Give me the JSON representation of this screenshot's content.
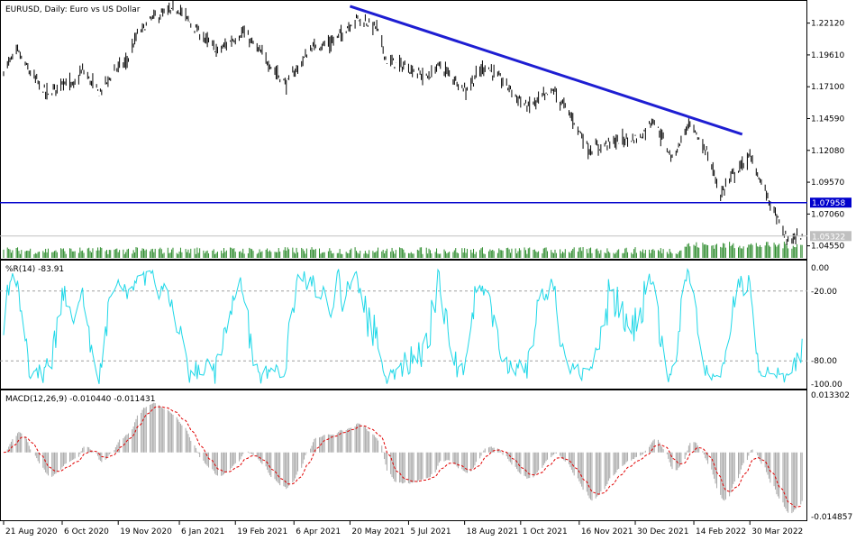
{
  "chart_data": [
    {
      "panel": "price",
      "type": "ohlc",
      "title": "EURUSD, Daily:  Euro vs US Dollar",
      "yticks": [
        "1.22120",
        "1.19610",
        "1.17100",
        "1.14590",
        "1.12080",
        "1.09570",
        "1.07060",
        "1.04550"
      ],
      "ylim": [
        1.036,
        1.238
      ],
      "horizontal_line": {
        "value": 1.07958,
        "label": "1.07958",
        "color": "#0000cc"
      },
      "current_price": {
        "value": 1.05322,
        "label": "1.05322",
        "color": "#c0c0c0"
      },
      "trendline": {
        "from": [
          "2021-05-20",
          1.2345
        ],
        "to": [
          "2022-03-24",
          1.1335
        ],
        "color": "#1e1ed2"
      },
      "close_series": [
        {
          "date": "2020-08-21",
          "close": 1.184
        },
        {
          "date": "2020-09-01",
          "close": 1.199
        },
        {
          "date": "2020-09-10",
          "close": 1.183
        },
        {
          "date": "2020-09-25",
          "close": 1.164
        },
        {
          "date": "2020-10-06",
          "close": 1.176
        },
        {
          "date": "2020-10-15",
          "close": 1.171
        },
        {
          "date": "2020-10-22",
          "close": 1.184
        },
        {
          "date": "2020-11-04",
          "close": 1.166
        },
        {
          "date": "2020-11-17",
          "close": 1.185
        },
        {
          "date": "2020-11-26",
          "close": 1.191
        },
        {
          "date": "2020-12-04",
          "close": 1.212
        },
        {
          "date": "2020-12-17",
          "close": 1.226
        },
        {
          "date": "2021-01-06",
          "close": 1.232
        },
        {
          "date": "2021-01-20",
          "close": 1.215
        },
        {
          "date": "2021-02-05",
          "close": 1.199
        },
        {
          "date": "2021-02-25",
          "close": 1.214
        },
        {
          "date": "2021-03-12",
          "close": 1.196
        },
        {
          "date": "2021-03-31",
          "close": 1.173
        },
        {
          "date": "2021-04-20",
          "close": 1.202
        },
        {
          "date": "2021-05-06",
          "close": 1.206
        },
        {
          "date": "2021-05-25",
          "close": 1.225
        },
        {
          "date": "2021-06-10",
          "close": 1.218
        },
        {
          "date": "2021-06-18",
          "close": 1.191
        },
        {
          "date": "2021-07-05",
          "close": 1.186
        },
        {
          "date": "2021-07-20",
          "close": 1.178
        },
        {
          "date": "2021-07-29",
          "close": 1.188
        },
        {
          "date": "2021-08-19",
          "close": 1.169
        },
        {
          "date": "2021-09-03",
          "close": 1.188
        },
        {
          "date": "2021-09-20",
          "close": 1.172
        },
        {
          "date": "2021-10-06",
          "close": 1.155
        },
        {
          "date": "2021-10-27",
          "close": 1.168
        },
        {
          "date": "2021-11-12",
          "close": 1.144
        },
        {
          "date": "2021-11-24",
          "close": 1.121
        },
        {
          "date": "2021-12-14",
          "close": 1.128
        },
        {
          "date": "2022-01-03",
          "close": 1.131
        },
        {
          "date": "2022-01-13",
          "close": 1.146
        },
        {
          "date": "2022-01-28",
          "close": 1.114
        },
        {
          "date": "2022-02-10",
          "close": 1.142
        },
        {
          "date": "2022-02-24",
          "close": 1.12
        },
        {
          "date": "2022-03-07",
          "close": 1.086
        },
        {
          "date": "2022-03-16",
          "close": 1.101
        },
        {
          "date": "2022-03-30",
          "close": 1.116
        },
        {
          "date": "2022-04-14",
          "close": 1.082
        },
        {
          "date": "2022-04-28",
          "close": 1.05
        },
        {
          "date": "2022-05-10",
          "close": 1.053
        }
      ]
    },
    {
      "panel": "williams_r",
      "type": "line",
      "title": "%R(14) -83.91",
      "yticks": [
        "0.00",
        "-20.00",
        "-80.00",
        "-100.00"
      ],
      "ylim": [
        -100,
        0
      ],
      "levels": [
        -20,
        -80
      ],
      "color": "#20d8e8"
    },
    {
      "panel": "macd",
      "type": "histogram+line",
      "title": "MACD(12,26,9) -0.010440 -0.011431",
      "yticks": [
        "0.013302",
        "-0.014857"
      ],
      "ylim": [
        -0.014857,
        0.013302
      ],
      "histogram_color": "#a8a8a8",
      "signal_color": "#e00000"
    }
  ],
  "x_axis": {
    "labels": [
      "21 Aug 2020",
      "6 Oct 2020",
      "19 Nov 2020",
      "6 Jan 2021",
      "19 Feb 2021",
      "6 Apr 2021",
      "20 May 2021",
      "5 Jul 2021",
      "18 Aug 2021",
      "1 Oct 2021",
      "16 Nov 2021",
      "30 Dec 2021",
      "14 Feb 2022",
      "30 Mar 2022"
    ],
    "dates": [
      "2020-08-21",
      "2020-10-06",
      "2020-11-19",
      "2021-01-06",
      "2021-02-19",
      "2021-04-06",
      "2021-05-20",
      "2021-07-05",
      "2021-08-18",
      "2021-10-01",
      "2021-11-16",
      "2021-12-30",
      "2022-02-14",
      "2022-03-30"
    ]
  },
  "colors": {
    "price_bar": "#000000",
    "volume": "#2a8a2a",
    "grid_dash": "#a0a0a0",
    "frame": "#000000"
  }
}
